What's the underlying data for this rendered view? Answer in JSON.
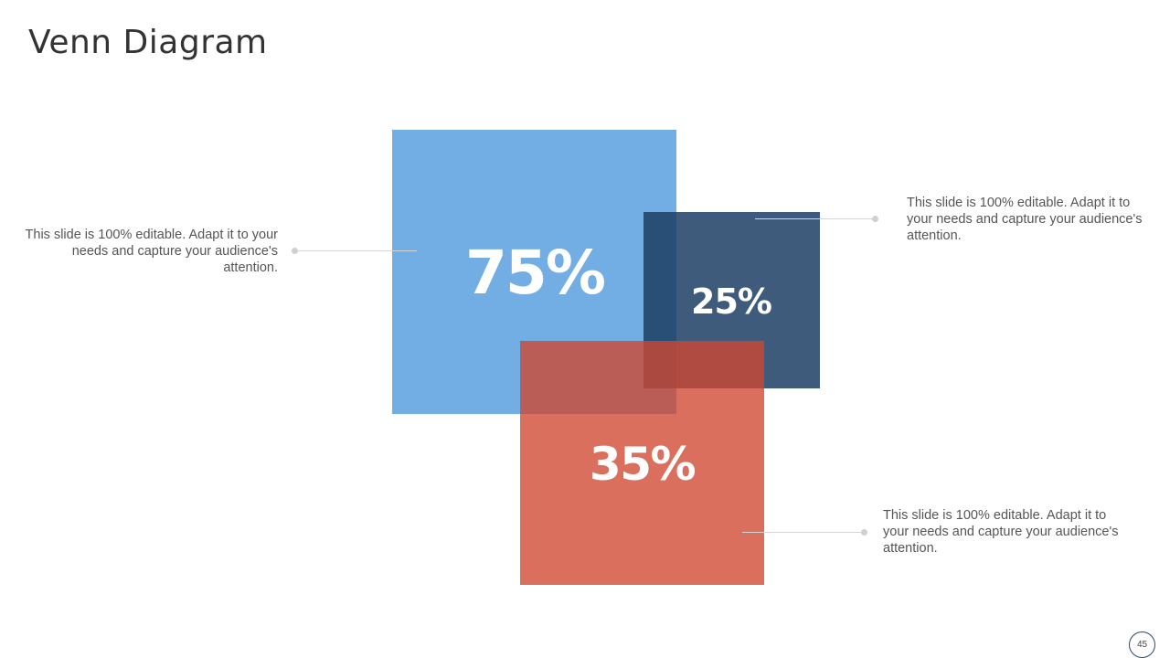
{
  "slide": {
    "title": "Venn Diagram",
    "page_number": "45"
  },
  "diagram": {
    "squares": [
      {
        "id": "blue",
        "label": "75%",
        "color": "#4A96DC"
      },
      {
        "id": "navy",
        "label": "25%",
        "color": "#1C3E64"
      },
      {
        "id": "red",
        "label": "35%",
        "color": "#CF4630"
      }
    ],
    "callouts": [
      {
        "id": "left",
        "text": "This slide is 100% editable. Adapt it to your needs and capture your audience's attention."
      },
      {
        "id": "top-right",
        "text": "This slide is 100% editable. Adapt it to your needs and capture your audience's attention."
      },
      {
        "id": "bottom-right",
        "text": "This slide is 100% editable. Adapt it to your needs and capture your audience's attention."
      }
    ],
    "connector_color": "#D5D5D5"
  }
}
